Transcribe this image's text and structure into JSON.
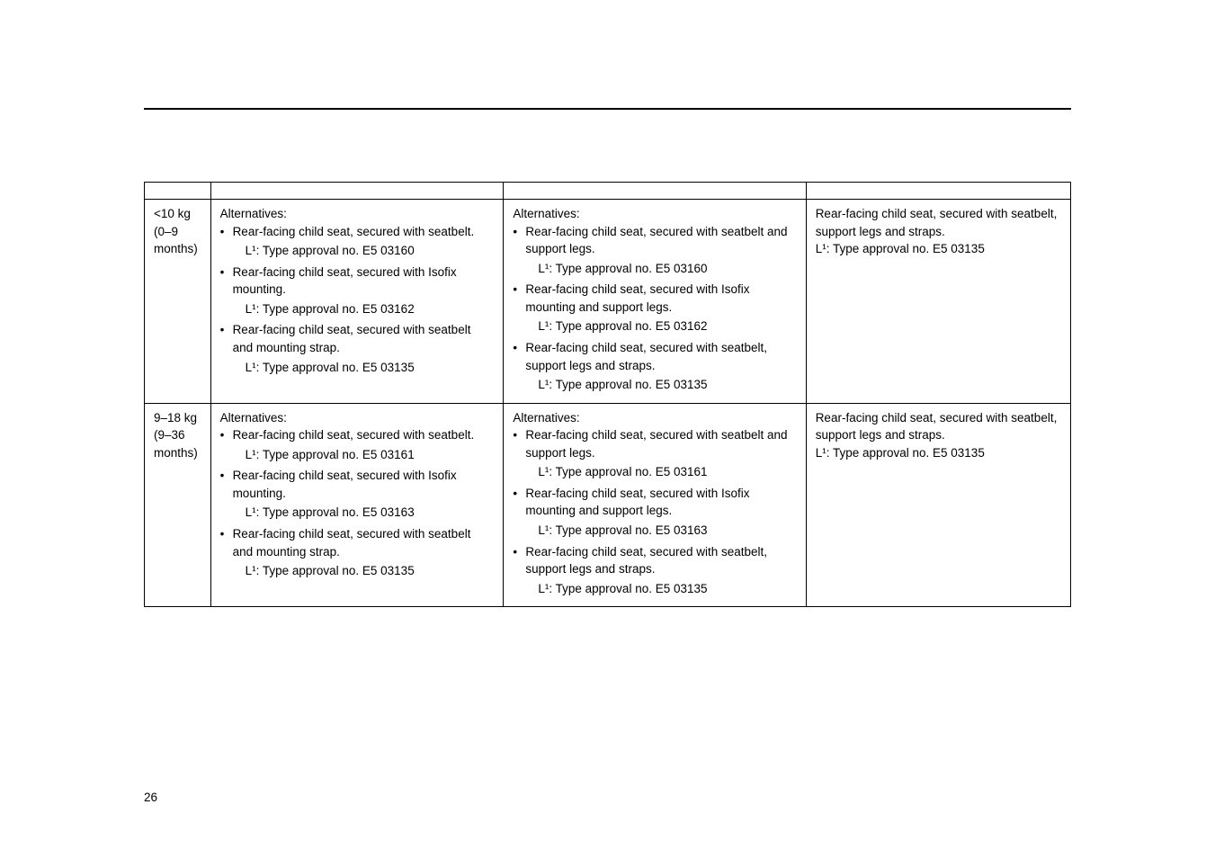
{
  "divider_color": "#000000",
  "page_number": "26",
  "rows": [
    {
      "key_line1": "<10 kg",
      "key_line2": "(0–9 months)",
      "col2_heading": "Alternatives:",
      "col2_items": [
        {
          "main": "Rear-facing child seat, secured with seatbelt.",
          "sub": "L¹: Type approval no. E5 03160"
        },
        {
          "main": "Rear-facing child seat, secured with Isofix mounting.",
          "sub": "L¹: Type approval no. E5 03162"
        },
        {
          "main": "Rear-facing child seat, secured with seatbelt and mounting strap.",
          "sub": "L¹: Type approval no. E5 03135"
        }
      ],
      "col3_heading": "Alternatives:",
      "col3_items": [
        {
          "main": "Rear-facing child seat, secured with seatbelt and support legs.",
          "sub": "L¹: Type approval no. E5 03160"
        },
        {
          "main": "Rear-facing child seat, secured with Isofix mounting and support legs.",
          "sub": "L¹: Type approval no. E5 03162"
        },
        {
          "main": "Rear-facing child seat, secured with seatbelt, support legs and straps.",
          "sub": "L¹: Type approval no. E5 03135"
        }
      ],
      "col4_line1": "Rear-facing child seat, secured with seatbelt, support legs and straps.",
      "col4_line2": "L¹: Type approval no. E5 03135"
    },
    {
      "key_line1": "9–18 kg",
      "key_line2": "(9–36 months)",
      "col2_heading": "Alternatives:",
      "col2_items": [
        {
          "main": "Rear-facing child seat, secured with seatbelt.",
          "sub": "L¹: Type approval no. E5 03161"
        },
        {
          "main": "Rear-facing child seat, secured with Isofix mounting.",
          "sub": "L¹: Type approval no. E5 03163"
        },
        {
          "main": "Rear-facing child seat, secured with seatbelt and mounting strap.",
          "sub": "L¹: Type approval no. E5 03135"
        }
      ],
      "col3_heading": "Alternatives:",
      "col3_items": [
        {
          "main": "Rear-facing child seat, secured with seatbelt and support legs.",
          "sub": "L¹: Type approval no. E5 03161"
        },
        {
          "main": "Rear-facing child seat, secured with Isofix mounting and support legs.",
          "sub": "L¹: Type approval no. E5 03163"
        },
        {
          "main": "Rear-facing child seat, secured with seatbelt, support legs and straps.",
          "sub": "L¹: Type approval no. E5 03135"
        }
      ],
      "col4_line1": "Rear-facing child seat, secured with seatbelt, support legs and straps.",
      "col4_line2": "L¹: Type approval no. E5 03135"
    }
  ]
}
